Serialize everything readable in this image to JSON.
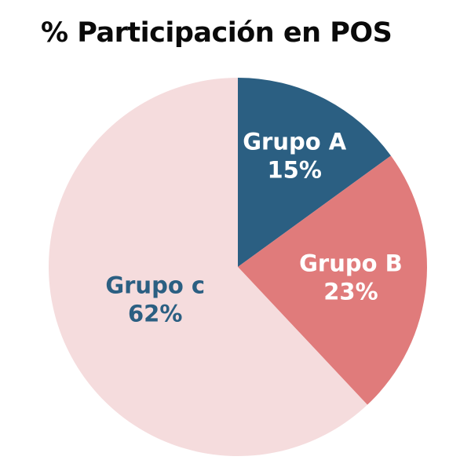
{
  "chart_data": {
    "type": "pie",
    "title": "% Participación en POS",
    "start_angle_deg": 0,
    "direction": "clockwise",
    "slices": [
      {
        "label": "Grupo A",
        "value": 15,
        "value_label": "15%",
        "color": "#2b5f82",
        "text_color": "#ffffff"
      },
      {
        "label": "Grupo B",
        "value": 23,
        "value_label": "23%",
        "color": "#e07b7b",
        "text_color": "#ffffff"
      },
      {
        "label": "Grupo c",
        "value": 62,
        "value_label": "62%",
        "color": "#f5dcdd",
        "text_color": "#2b5f82"
      }
    ]
  }
}
